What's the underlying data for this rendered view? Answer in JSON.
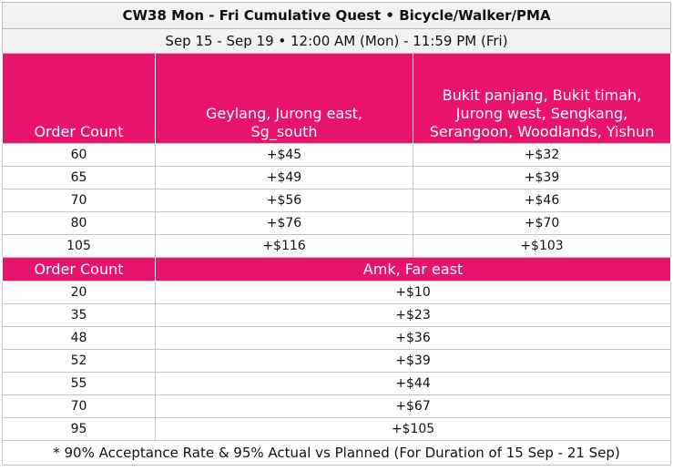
{
  "title": "CW38 Mon - Fri Cumulative Quest • Bicycle/Walker/PMA",
  "subtitle": "Sep 15 - Sep 19 • 12:00 AM (Mon) - 11:59 PM (Fri)",
  "section1": {
    "col1": "Order Count",
    "col2": "Geylang, Jurong east, Sg_south",
    "col3": "Bukit panjang, Bukit timah, Jurong west, Sengkang, Serangoon, Woodlands, Yishun",
    "rows": [
      {
        "count": "60",
        "a": "+$45",
        "b": "+$32"
      },
      {
        "count": "65",
        "a": "+$49",
        "b": "+$39"
      },
      {
        "count": "70",
        "a": "+$56",
        "b": "+$46"
      },
      {
        "count": "80",
        "a": "+$76",
        "b": "+$70"
      },
      {
        "count": "105",
        "a": "+$116",
        "b": "+$103"
      }
    ]
  },
  "section2": {
    "col1": "Order Count",
    "col2": "Amk, Far east",
    "rows": [
      {
        "count": "20",
        "a": "+$10"
      },
      {
        "count": "35",
        "a": "+$23"
      },
      {
        "count": "48",
        "a": "+$36"
      },
      {
        "count": "52",
        "a": "+$39"
      },
      {
        "count": "55",
        "a": "+$44"
      },
      {
        "count": "70",
        "a": "+$67"
      },
      {
        "count": "95",
        "a": "+$105"
      }
    ]
  },
  "footnote": "* 90% Acceptance Rate & 95% Actual vs Planned (For Duration of 15 Sep - 21 Sep)",
  "colors": {
    "accent": "#e8146c",
    "header_bg": "#f2f2f2"
  }
}
